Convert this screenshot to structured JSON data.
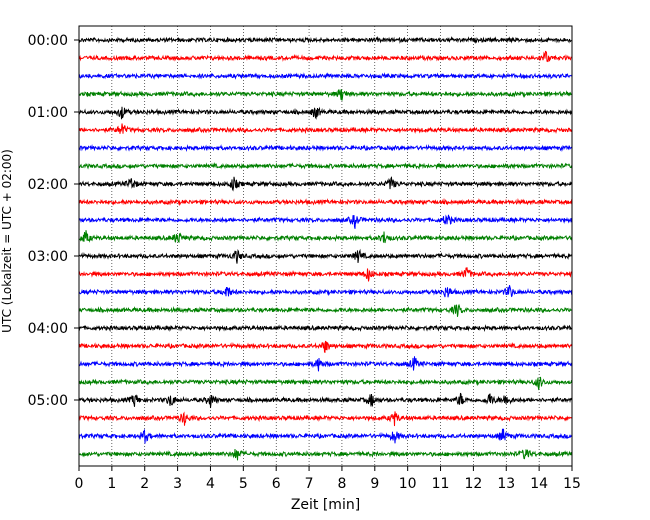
{
  "chart_data": {
    "type": "line",
    "title": "",
    "xlabel": "Zeit  [min]",
    "ylabel": "UTC (Lokalzeit = UTC + 02:00)",
    "xlim": [
      0,
      15
    ],
    "x_ticks": [
      0,
      1,
      2,
      3,
      4,
      5,
      6,
      7,
      8,
      9,
      10,
      11,
      12,
      13,
      14,
      15
    ],
    "y_tick_labels": [
      "00:00",
      "01:00",
      "02:00",
      "03:00",
      "04:00",
      "05:00"
    ],
    "y_tick_rows": [
      0,
      4,
      8,
      12,
      16,
      20
    ],
    "vertical_grid": "dotted, every 1 min",
    "trace_color_cycle": [
      "#000000",
      "#ff0000",
      "#0000ff",
      "#008000"
    ],
    "series": [
      {
        "values": [
          [
            0,
            0
          ],
          [
            15,
            0
          ]
        ],
        "color": "#000000"
      },
      {
        "values": [
          [
            0,
            0
          ],
          [
            15,
            0
          ]
        ],
        "color": "#ff0000",
        "events": [
          14.2
        ]
      },
      {
        "values": [
          [
            0,
            0
          ],
          [
            15,
            0
          ]
        ],
        "color": "#0000ff"
      },
      {
        "values": [
          [
            0,
            0
          ],
          [
            15,
            0
          ]
        ],
        "color": "#008000",
        "events": [
          8.0
        ]
      },
      {
        "values": [
          [
            0,
            0
          ],
          [
            15,
            0
          ]
        ],
        "color": "#000000",
        "events": [
          1.3,
          7.2
        ]
      },
      {
        "values": [
          [
            0,
            0
          ],
          [
            15,
            0
          ]
        ],
        "color": "#ff0000",
        "events": [
          1.3
        ]
      },
      {
        "values": [
          [
            0,
            0
          ],
          [
            15,
            0
          ]
        ],
        "color": "#0000ff"
      },
      {
        "values": [
          [
            0,
            0
          ],
          [
            15,
            0
          ]
        ],
        "color": "#008000"
      },
      {
        "values": [
          [
            0,
            0
          ],
          [
            15,
            0
          ]
        ],
        "color": "#000000",
        "events": [
          1.6,
          4.7,
          9.5
        ]
      },
      {
        "values": [
          [
            0,
            0
          ],
          [
            15,
            0
          ]
        ],
        "color": "#ff0000"
      },
      {
        "values": [
          [
            0,
            0
          ],
          [
            15,
            0
          ]
        ],
        "color": "#0000ff",
        "events": [
          8.4,
          11.2
        ]
      },
      {
        "values": [
          [
            0,
            0
          ],
          [
            15,
            0
          ]
        ],
        "color": "#008000",
        "events": [
          0.2,
          3.0,
          9.3
        ]
      },
      {
        "values": [
          [
            0,
            0
          ],
          [
            15,
            0
          ]
        ],
        "color": "#000000",
        "events": [
          4.8,
          8.5
        ]
      },
      {
        "values": [
          [
            0,
            0
          ],
          [
            15,
            0
          ]
        ],
        "color": "#ff0000",
        "events": [
          8.8,
          11.8
        ]
      },
      {
        "values": [
          [
            0,
            0
          ],
          [
            15,
            0
          ]
        ],
        "color": "#0000ff",
        "events": [
          4.5,
          11.2,
          13.1
        ]
      },
      {
        "values": [
          [
            0,
            0
          ],
          [
            15,
            0
          ]
        ],
        "color": "#008000",
        "events": [
          11.5
        ]
      },
      {
        "values": [
          [
            0,
            0
          ],
          [
            15,
            0
          ]
        ],
        "color": "#000000"
      },
      {
        "values": [
          [
            0,
            0
          ],
          [
            15,
            0
          ]
        ],
        "color": "#ff0000",
        "events": [
          7.5
        ]
      },
      {
        "values": [
          [
            0,
            0
          ],
          [
            15,
            0
          ]
        ],
        "color": "#0000ff",
        "events": [
          7.3,
          10.2
        ]
      },
      {
        "values": [
          [
            0,
            0
          ],
          [
            15,
            0
          ]
        ],
        "color": "#008000",
        "events": [
          14.0
        ]
      },
      {
        "values": [
          [
            0,
            0
          ],
          [
            15,
            0
          ]
        ],
        "color": "#000000",
        "events": [
          1.7,
          2.8,
          4.0,
          8.9,
          11.6,
          12.5,
          13.0
        ]
      },
      {
        "values": [
          [
            0,
            0
          ],
          [
            15,
            0
          ]
        ],
        "color": "#ff0000",
        "events": [
          3.2,
          9.6
        ]
      },
      {
        "values": [
          [
            0,
            0
          ],
          [
            15,
            0
          ]
        ],
        "color": "#0000ff",
        "events": [
          2.0,
          9.6,
          12.9
        ]
      },
      {
        "values": [
          [
            0,
            0
          ],
          [
            15,
            0
          ]
        ],
        "color": "#008000",
        "events": [
          4.8,
          13.6
        ]
      }
    ]
  }
}
